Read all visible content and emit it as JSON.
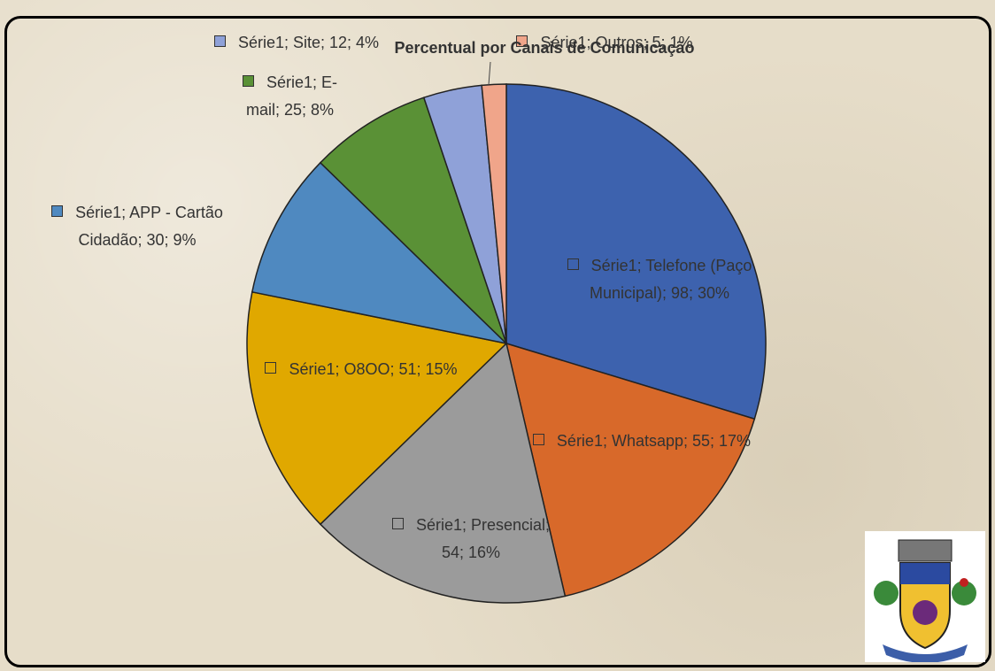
{
  "chart_data": {
    "type": "pie",
    "title": "Percentual por Canais de Comunicação",
    "categories": [
      "Telefone (Paço Municipal)",
      "Whatsapp",
      "Presencial",
      "O8OO",
      "APP - Cartão Cidadão",
      "E-mail",
      "Site",
      "Outros"
    ],
    "values": [
      98,
      55,
      54,
      51,
      30,
      25,
      12,
      5
    ],
    "value_labels": [
      "Série1; Telefone (Paço Municipal); 98; 30%",
      "Série1; Whatsapp; 55; 17%",
      "Série1; Presencial; 54; 16%",
      "Série1; O8OO; 51; 15%",
      "Série1; APP - Cartão Cidadão; 30; 9%",
      "Série1; E-mail; 25; 8%",
      "Série1; Site; 12; 4%",
      "Série1; Outros; 5; 1%"
    ],
    "colors": [
      "#3d62ae",
      "#d8692a",
      "#9b9b9b",
      "#e0a800",
      "#4f89c0",
      "#5a9136",
      "#8fa1d8",
      "#f0a58a"
    ]
  }
}
